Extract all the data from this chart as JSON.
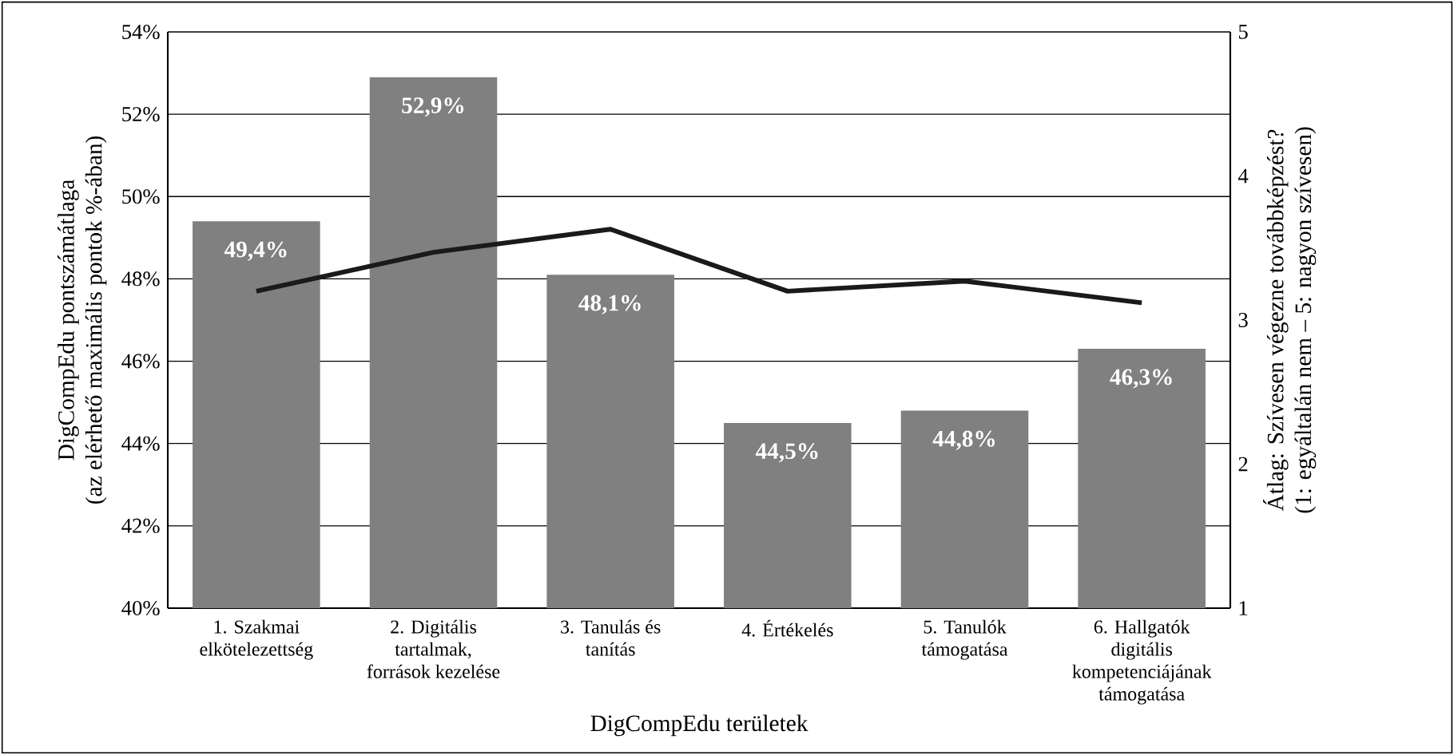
{
  "chart_data": {
    "type": "bar",
    "xlabel": "DigCompEdu  területek",
    "ylabel": "DigCompEdu pontszámátlaga\n(az elérhető maximális pontok %-ában)",
    "y2label": "Átlag: Szívesen végezne továbbképzést?\n(1: egyáltalán nem – 5: nagyon szívesen)",
    "categories": [
      "1. Szakmai\nelkötelezettség",
      "2. Digitális\ntartalmak,\nforrások kezelése",
      "3. Tanulás és\ntanítás",
      "4. Értékelés",
      "5. Tanulók\ntámogatása",
      "6. Hallgatók\ndigitális\nkompetenciájának\ntámogatása"
    ],
    "series": [
      {
        "color": "#808080",
        "values": [
          49.4,
          52.9,
          48.1,
          44.5,
          44.8,
          46.3
        ],
        "value_labels": [
          "49,4%",
          "52,9%",
          "48,1%",
          "44,5%",
          "44,8%",
          "46,3%"
        ]
      },
      {
        "type": "line",
        "axis": "y2",
        "color": "#1a1a1a",
        "values": [
          3.2,
          3.47,
          3.63,
          3.2,
          3.27,
          3.12
        ]
      }
    ],
    "ylim": [
      40,
      54
    ],
    "yticks": [
      {
        "value": 40,
        "label": "40%"
      },
      {
        "value": 42,
        "label": "42%"
      },
      {
        "value": 44,
        "label": "44%"
      },
      {
        "value": 46,
        "label": "46%"
      },
      {
        "value": 48,
        "label": "48%"
      },
      {
        "value": 50,
        "label": "50%"
      },
      {
        "value": 52,
        "label": "52%"
      },
      {
        "value": 54,
        "label": "54%"
      }
    ],
    "y2lim": [
      1,
      5
    ],
    "y2ticks": [
      1,
      2,
      3,
      4,
      5
    ],
    "grid": "y",
    "marker": "none",
    "line_style": "solid"
  }
}
